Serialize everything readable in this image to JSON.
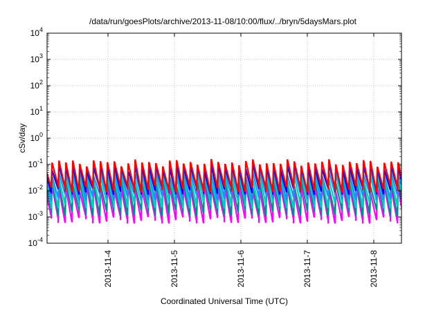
{
  "chart_data": {
    "type": "line",
    "title": "/data/run/goesPlots/archive/2013-11-08/10:00/flux/../bryn/5daysMars.plot",
    "xlabel": "Coordinated Universal Time (UTC)",
    "ylabel": "cSv/day",
    "yscale": "log",
    "ylim": [
      0.0001,
      10000
    ],
    "xlim": [
      "2013-11-03 02:00",
      "2013-11-08 10:00"
    ],
    "y_ticks": [
      {
        "base": "10",
        "exp": "-4",
        "value": 0.0001
      },
      {
        "base": "10",
        "exp": "-3",
        "value": 0.001
      },
      {
        "base": "10",
        "exp": "-2",
        "value": 0.01
      },
      {
        "base": "10",
        "exp": "-1",
        "value": 0.1
      },
      {
        "base": "10",
        "exp": "0",
        "value": 1
      },
      {
        "base": "10",
        "exp": "1",
        "value": 10
      },
      {
        "base": "10",
        "exp": "2",
        "value": 100
      },
      {
        "base": "10",
        "exp": "3",
        "value": 1000
      },
      {
        "base": "10",
        "exp": "4",
        "value": 10000
      }
    ],
    "x_ticks": [
      {
        "label": "2013-11-4",
        "value": "2013-11-04 00:00"
      },
      {
        "label": "2013-11-5",
        "value": "2013-11-05 00:00"
      },
      {
        "label": "2013-11-6",
        "value": "2013-11-06 00:00"
      },
      {
        "label": "2013-11-7",
        "value": "2013-11-07 00:00"
      },
      {
        "label": "2013-11-8",
        "value": "2013-11-08 00:00"
      }
    ],
    "grid": true,
    "legend": "none",
    "sawtooth_period_hours": 2.5,
    "series": [
      {
        "color": "#ff00ff",
        "peak": 0.012,
        "trough": 0.0008
      },
      {
        "color": "#008b8b",
        "peak": 0.02,
        "trough": 0.0015
      },
      {
        "color": "#00cccc",
        "peak": 0.035,
        "trough": 0.003
      },
      {
        "color": "#1e90ff",
        "peak": 0.05,
        "trough": 0.006
      },
      {
        "color": "#0000ff",
        "peak": 0.08,
        "trough": 0.01
      },
      {
        "color": "#ff0000",
        "peak": 0.12,
        "trough": 0.012
      }
    ]
  }
}
